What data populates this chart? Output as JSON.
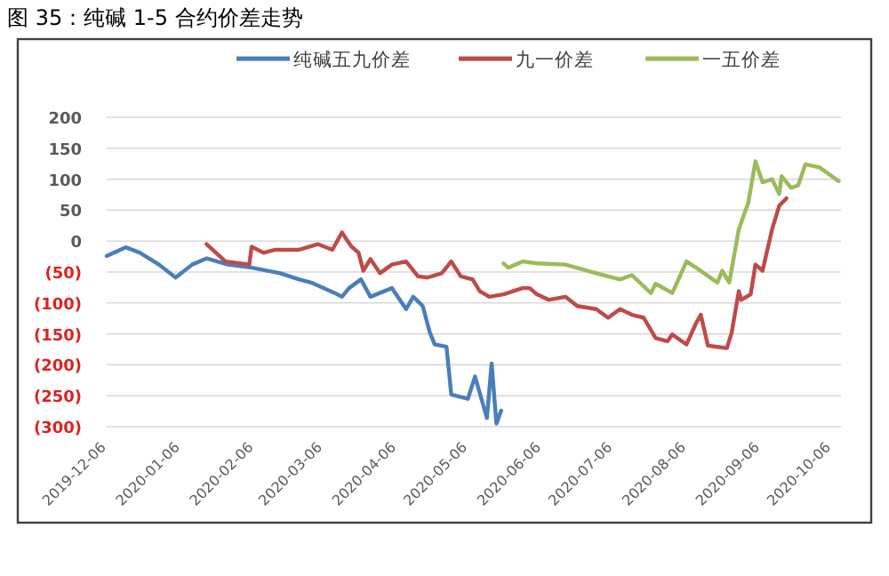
{
  "chart_data": {
    "type": "line",
    "title": "图 35：纯碱 1-5 合约价差走势",
    "xlim": [
      "2019-12-06",
      "2020-10-10"
    ],
    "xticks": [
      "2019-12-06",
      "2020-01-06",
      "2020-02-06",
      "2020-03-06",
      "2020-04-06",
      "2020-05-06",
      "2020-06-06",
      "2020-07-06",
      "2020-08-06",
      "2020-09-06",
      "2020-10-06"
    ],
    "ylim": [
      -300,
      200
    ],
    "yticks": [
      200,
      150,
      100,
      50,
      0,
      {
        "value": -50,
        "label": "(50)"
      },
      {
        "value": -100,
        "label": "(100)"
      },
      {
        "value": -150,
        "label": "(150)"
      },
      {
        "value": -200,
        "label": "(200)"
      },
      {
        "value": -250,
        "label": "(250)"
      },
      {
        "value": -300,
        "label": "(300)"
      }
    ],
    "grid": "y",
    "legend": "top",
    "marker": "none",
    "line_style": "solid",
    "series": [
      {
        "name": "纯碱五九价差",
        "color": "#4a7ebb",
        "x": [
          "2019-12-06",
          "2019-12-14",
          "2019-12-20",
          "2019-12-28",
          "2020-01-04",
          "2020-01-11",
          "2020-01-17",
          "2020-01-26",
          "2020-02-05",
          "2020-02-17",
          "2020-02-25",
          "2020-03-01",
          "2020-03-11",
          "2020-03-14",
          "2020-03-17",
          "2020-03-22",
          "2020-03-26",
          "2020-04-04",
          "2020-04-10",
          "2020-04-13",
          "2020-04-17",
          "2020-04-20",
          "2020-04-22",
          "2020-04-27",
          "2020-04-29",
          "2020-05-06",
          "2020-05-09",
          "2020-05-14",
          "2020-05-16",
          "2020-05-18",
          "2020-05-20"
        ],
        "values": [
          -24,
          -10,
          -19,
          -38,
          -59,
          -38,
          -28,
          -38,
          -43,
          -52,
          -62,
          -67,
          -84,
          -90,
          -76,
          -62,
          -90,
          -76,
          -110,
          -90,
          -105,
          -148,
          -167,
          -171,
          -248,
          -255,
          -219,
          -286,
          -198,
          -295,
          -274
        ]
      },
      {
        "name": "九一价差",
        "color": "#be4b48",
        "x": [
          "2020-01-17",
          "2020-01-21",
          "2020-01-25",
          "2020-02-04",
          "2020-02-05",
          "2020-02-10",
          "2020-02-15",
          "2020-02-25",
          "2020-03-04",
          "2020-03-10",
          "2020-03-14",
          "2020-03-18",
          "2020-03-21",
          "2020-03-23",
          "2020-03-26",
          "2020-03-30",
          "2020-04-04",
          "2020-04-10",
          "2020-04-15",
          "2020-04-19",
          "2020-04-25",
          "2020-04-29",
          "2020-05-03",
          "2020-05-08",
          "2020-05-11",
          "2020-05-15",
          "2020-05-21",
          "2020-05-29",
          "2020-06-01",
          "2020-06-04",
          "2020-06-09",
          "2020-06-16",
          "2020-06-21",
          "2020-06-29",
          "2020-07-04",
          "2020-07-09",
          "2020-07-14",
          "2020-07-19",
          "2020-07-24",
          "2020-07-29",
          "2020-07-31",
          "2020-08-06",
          "2020-08-10",
          "2020-08-12",
          "2020-08-15",
          "2020-08-19",
          "2020-08-23",
          "2020-08-25",
          "2020-08-28",
          "2020-08-29",
          "2020-09-02",
          "2020-09-04",
          "2020-09-07",
          "2020-09-11",
          "2020-09-14",
          "2020-09-17"
        ],
        "values": [
          -5,
          -19,
          -33,
          -38,
          -9,
          -19,
          -14,
          -14,
          -5,
          -14,
          14,
          -9,
          -19,
          -48,
          -29,
          -52,
          -38,
          -33,
          -57,
          -59,
          -52,
          -33,
          -57,
          -62,
          -81,
          -90,
          -86,
          -76,
          -76,
          -86,
          -95,
          -90,
          -105,
          -110,
          -124,
          -110,
          -119,
          -124,
          -157,
          -162,
          -151,
          -167,
          -133,
          -119,
          -169,
          -171,
          -173,
          -148,
          -81,
          -95,
          -86,
          -38,
          -48,
          19,
          57,
          69
        ]
      },
      {
        "name": "一五价差",
        "color": "#9bbb59",
        "x": [
          "2020-05-21",
          "2020-05-23",
          "2020-05-29",
          "2020-06-04",
          "2020-06-16",
          "2020-06-29",
          "2020-07-09",
          "2020-07-14",
          "2020-07-22",
          "2020-07-24",
          "2020-07-31",
          "2020-08-06",
          "2020-08-10",
          "2020-08-19",
          "2020-08-21",
          "2020-08-24",
          "2020-08-28",
          "2020-09-01",
          "2020-09-04",
          "2020-09-07",
          "2020-09-11",
          "2020-09-14",
          "2020-09-15",
          "2020-09-19",
          "2020-09-22",
          "2020-09-25",
          "2020-10-01",
          "2020-10-09"
        ],
        "values": [
          -36,
          -43,
          -33,
          -36,
          -38,
          -52,
          -62,
          -55,
          -84,
          -69,
          -84,
          -33,
          -43,
          -67,
          -48,
          -67,
          19,
          62,
          129,
          95,
          100,
          76,
          105,
          86,
          90,
          124,
          119,
          97
        ]
      }
    ]
  }
}
